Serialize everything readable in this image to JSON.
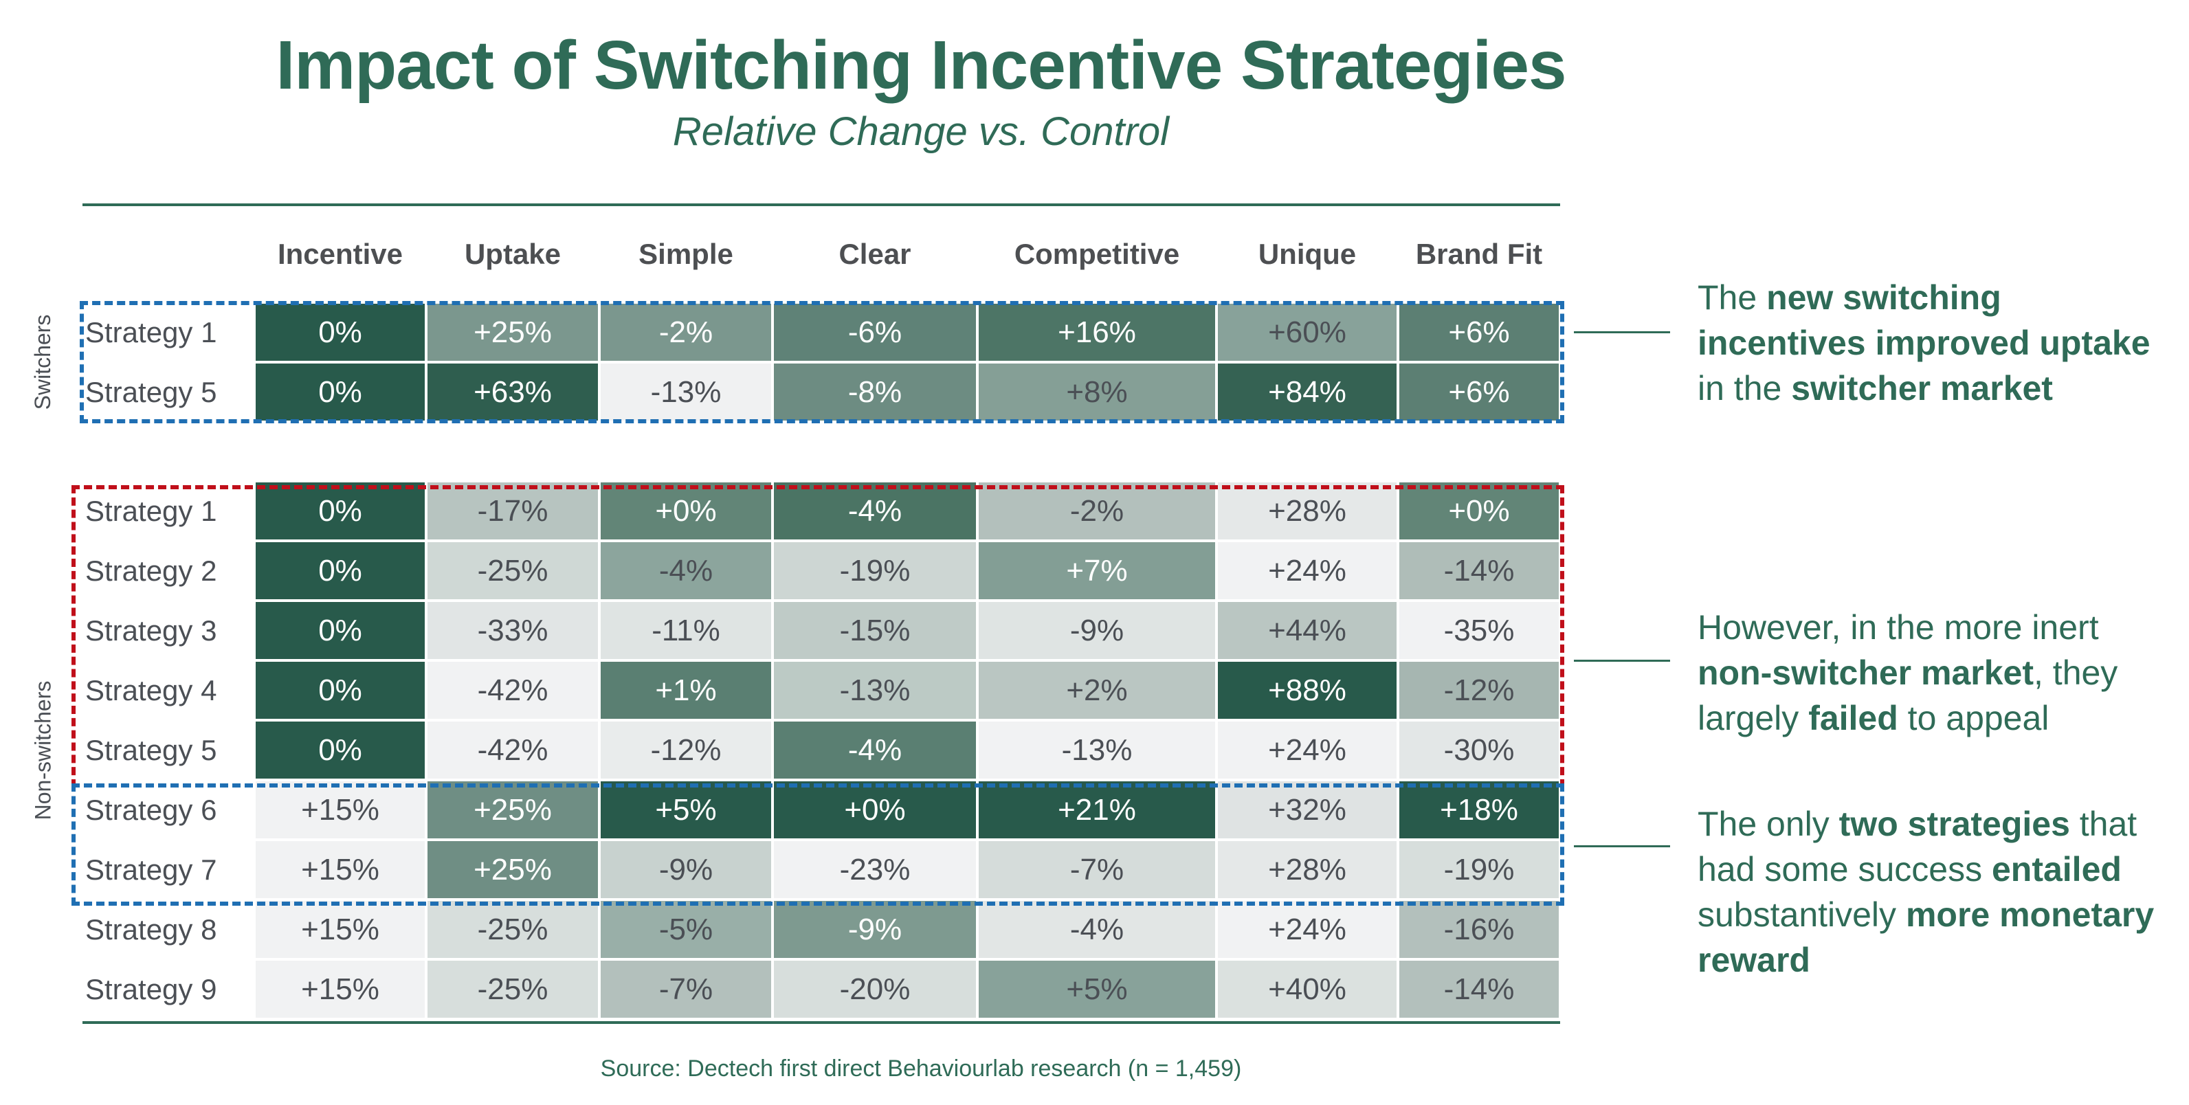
{
  "title": "Impact of Switching Incentive Strategies",
  "subtitle": "Relative Change vs. Control",
  "source": "Source: Dectech first direct Behaviourlab research (n = 1,459)",
  "chart_data": {
    "type": "heatmap",
    "title": "Impact of Switching Incentive Strategies",
    "subtitle": "Relative Change vs. Control",
    "columns": [
      "Incentive",
      "Uptake",
      "Simple",
      "Clear",
      "Competitive",
      "Unique",
      "Brand Fit"
    ],
    "groups": [
      {
        "name": "Switchers",
        "rows": [
          {
            "label": "Strategy 1",
            "values": [
              "0%",
              "+25%",
              "-2%",
              "-6%",
              "+16%",
              "+60%",
              "+6%"
            ]
          },
          {
            "label": "Strategy 5",
            "values": [
              "0%",
              "+63%",
              "-13%",
              "-8%",
              "+8%",
              "+84%",
              "+6%"
            ]
          }
        ]
      },
      {
        "name": "Non-switchers",
        "rows": [
          {
            "label": "Strategy 1",
            "values": [
              "0%",
              "-17%",
              "+0%",
              "-4%",
              "-2%",
              "+28%",
              "+0%"
            ]
          },
          {
            "label": "Strategy 2",
            "values": [
              "0%",
              "-25%",
              "-4%",
              "-19%",
              "+7%",
              "+24%",
              "-14%"
            ]
          },
          {
            "label": "Strategy 3",
            "values": [
              "0%",
              "-33%",
              "-11%",
              "-15%",
              "-9%",
              "+44%",
              "-35%"
            ]
          },
          {
            "label": "Strategy 4",
            "values": [
              "0%",
              "-42%",
              "+1%",
              "-13%",
              "+2%",
              "+88%",
              "-12%"
            ]
          },
          {
            "label": "Strategy 5",
            "values": [
              "0%",
              "-42%",
              "-12%",
              "-4%",
              "-13%",
              "+24%",
              "-30%"
            ]
          },
          {
            "label": "Strategy 6",
            "values": [
              "+15%",
              "+25%",
              "+5%",
              "+0%",
              "+21%",
              "+32%",
              "+18%"
            ]
          },
          {
            "label": "Strategy 7",
            "values": [
              "+15%",
              "+25%",
              "-9%",
              "-23%",
              "-7%",
              "+28%",
              "-19%"
            ]
          },
          {
            "label": "Strategy 8",
            "values": [
              "+15%",
              "-25%",
              "-5%",
              "-9%",
              "-4%",
              "+24%",
              "-16%"
            ]
          },
          {
            "label": "Strategy 9",
            "values": [
              "+15%",
              "-25%",
              "-7%",
              "-20%",
              "+5%",
              "+40%",
              "-14%"
            ]
          }
        ]
      }
    ],
    "shades": [
      [
        "#285a4b",
        "#7b978e",
        "#7b978e",
        "#5f8277",
        "#4d7566",
        "#88a29a",
        "#5c7f73"
      ],
      [
        "#285a4b",
        "#2f5e4f",
        "#f0f1f2",
        "#6d8c82",
        "#859f96",
        "#356253",
        "#5c7f73"
      ],
      [
        "#285a4b",
        "#b7c4c0",
        "#628577",
        "#4b7464",
        "#b3c0bc",
        "#e5e8e8",
        "#628577"
      ],
      [
        "#285a4b",
        "#cfd8d5",
        "#8ca59d",
        "#cdd6d3",
        "#839e95",
        "#f1f2f3",
        "#afbdb8"
      ],
      [
        "#285a4b",
        "#e1e5e5",
        "#dfe4e3",
        "#bfcbc7",
        "#dfe4e3",
        "#bac6c2",
        "#f1f2f3"
      ],
      [
        "#285a4b",
        "#f1f2f3",
        "#5a7f72",
        "#bccac5",
        "#bac6c2",
        "#285a4b",
        "#a6b6b1"
      ],
      [
        "#285a4b",
        "#f1f2f3",
        "#e9ecec",
        "#5a7f72",
        "#f1f2f3",
        "#f1f2f3",
        "#e3e7e7"
      ],
      [
        "#f1f2f3",
        "#6f8e84",
        "#285a4b",
        "#285a4b",
        "#285a4b",
        "#dfe3e3",
        "#285a4b"
      ],
      [
        "#f1f2f3",
        "#6f8e84",
        "#c8d2cf",
        "#f1f2f3",
        "#d5dcda",
        "#e5e8e8",
        "#d7dedc"
      ],
      [
        "#f1f2f3",
        "#d7dedc",
        "#99afa8",
        "#7e9a90",
        "#e2e6e5",
        "#f1f2f3",
        "#b3c0bc"
      ],
      [
        "#f1f2f3",
        "#d7dedc",
        "#b3c0bc",
        "#d7dedc",
        "#88a29a",
        "#dbe1df",
        "#b3c0bc"
      ]
    ],
    "highlight_colors": {
      "blue": "#1f6fb3",
      "red": "#c00f1a"
    }
  },
  "annotations": [
    [
      {
        "text": "The ",
        "bold": false
      },
      {
        "text": "new switching incentives improved uptake",
        "bold": true
      },
      {
        "text": " in the ",
        "bold": false
      },
      {
        "text": "switcher market",
        "bold": true
      }
    ],
    [
      {
        "text": "However, in the more inert ",
        "bold": false
      },
      {
        "text": "non-switcher market",
        "bold": true
      },
      {
        "text": ", they largely ",
        "bold": false
      },
      {
        "text": "failed",
        "bold": true
      },
      {
        "text": " to appeal",
        "bold": false
      }
    ],
    [
      {
        "text": "The only ",
        "bold": false
      },
      {
        "text": "two strategies",
        "bold": true
      },
      {
        "text": " that had some success ",
        "bold": false
      },
      {
        "text": "entailed",
        "bold": true
      },
      {
        "text": " substantively ",
        "bold": false
      },
      {
        "text": "more monetary reward",
        "bold": true
      }
    ]
  ]
}
